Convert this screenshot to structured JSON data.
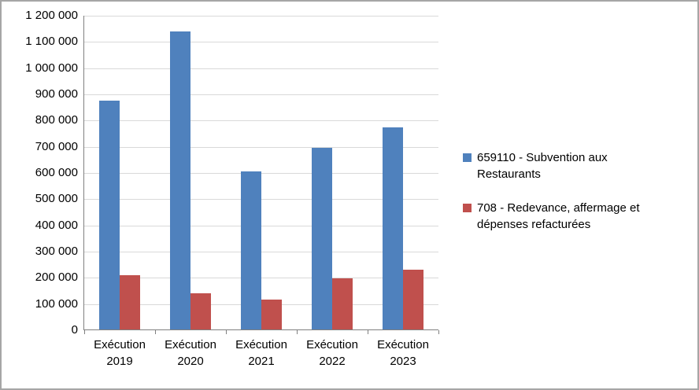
{
  "chart_data": {
    "type": "bar",
    "title": "",
    "xlabel": "",
    "ylabel": "",
    "categories": [
      "Exécution 2019",
      "Exécution 2020",
      "Exécution 2021",
      "Exécution 2022",
      "Exécution 2023"
    ],
    "series": [
      {
        "name": "659110 - Subvention aux Restaurants",
        "color": "#4F81BD",
        "values": [
          875000,
          1140000,
          605000,
          695000,
          775000
        ]
      },
      {
        "name": "708 - Redevance, affermage et dépenses refacturées",
        "color": "#C0504D",
        "values": [
          210000,
          140000,
          118000,
          198000,
          230000
        ]
      }
    ],
    "ylim": [
      0,
      1200000
    ],
    "ytick_step": 100000,
    "ytick_labels": [
      "0",
      "100 000",
      "200 000",
      "300 000",
      "400 000",
      "500 000",
      "600 000",
      "700 000",
      "800 000",
      "900 000",
      "1 000 000",
      "1 100 000",
      "1 200 000"
    ],
    "grid": true,
    "legend_position": "right",
    "gridline_color": "#D9D9D9",
    "axis_color": "#808080",
    "border_color": "#A6A6A6",
    "background_color": "#FFFFFF"
  }
}
